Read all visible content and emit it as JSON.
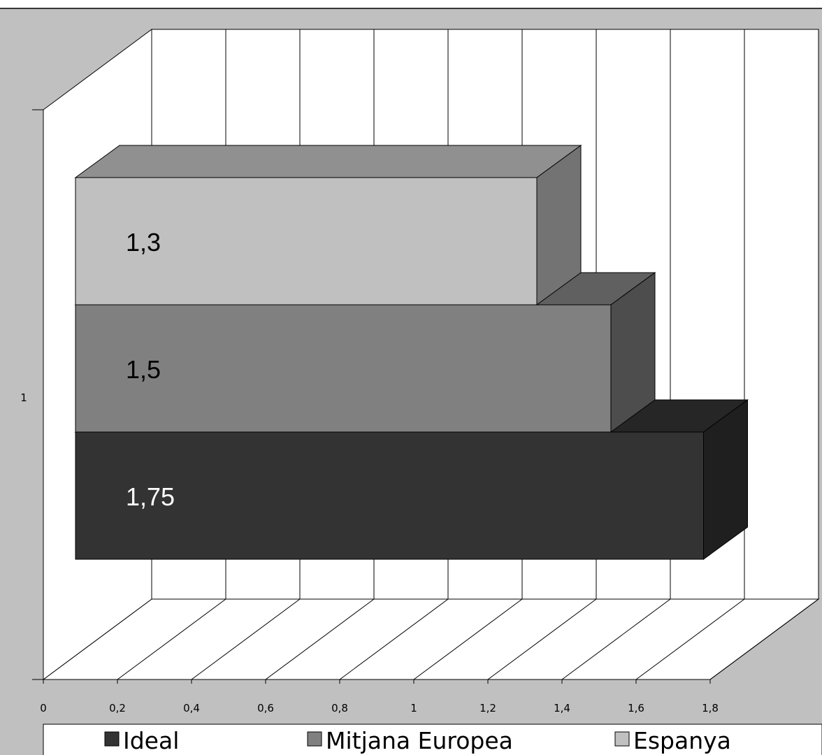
{
  "chart_data": {
    "type": "bar",
    "orientation": "horizontal",
    "three_d": true,
    "categories": [
      "1"
    ],
    "series": [
      {
        "name": "Ideal",
        "values": [
          1.75
        ],
        "color": "#333333",
        "label": "1,75"
      },
      {
        "name": "Mitjana Europea",
        "values": [
          1.5
        ],
        "color": "#808080",
        "label": "1,5"
      },
      {
        "name": "Espanya",
        "values": [
          1.3
        ],
        "color": "#c0c0c0",
        "label": "1,3"
      }
    ],
    "xticks": [
      "0",
      "0,2",
      "0,4",
      "0,6",
      "0,8",
      "1",
      "1,2",
      "1,4",
      "1,6",
      "1,8"
    ],
    "xlim": [
      0,
      1.8
    ],
    "grid": true,
    "legend_position": "bottom",
    "colors": {
      "wall": "#c0c0c0",
      "plot_face": "#ffffff",
      "grid": "#000000"
    }
  }
}
